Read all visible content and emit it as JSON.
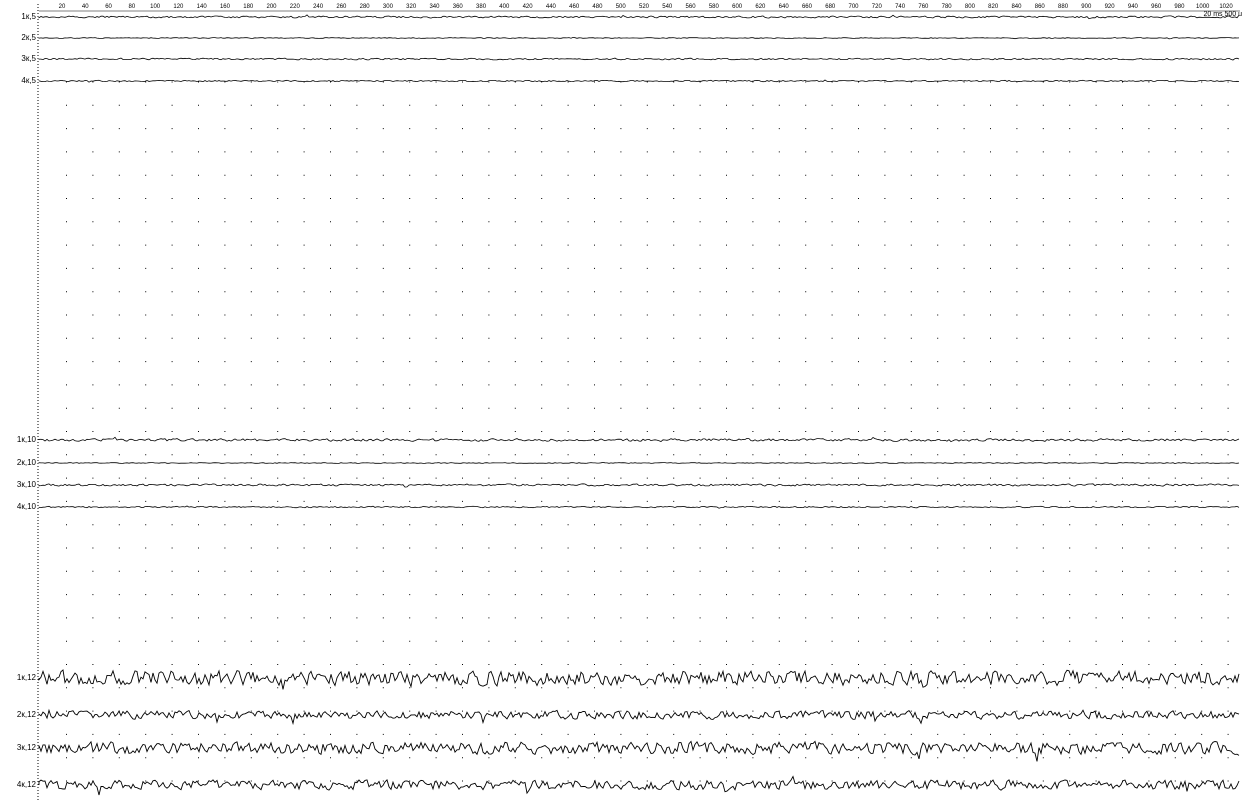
{
  "ruler": {
    "ticks": [
      "20",
      "40",
      "60",
      "80",
      "100",
      "120",
      "140",
      "160",
      "180",
      "200",
      "220",
      "240",
      "260",
      "280",
      "300",
      "320",
      "340",
      "360",
      "380",
      "400",
      "420",
      "440",
      "460",
      "480",
      "500",
      "520",
      "540",
      "560",
      "580",
      "600",
      "620",
      "640",
      "660",
      "680",
      "700",
      "720",
      "740",
      "760",
      "780",
      "800",
      "820",
      "840",
      "860",
      "880",
      "900",
      "920",
      "940",
      "960",
      "980",
      "1000",
      "1020"
    ],
    "scale_label": "20 ms 500 u"
  },
  "channels": [
    {
      "label": "1к,5",
      "amp": 1.2,
      "seed": 11
    },
    {
      "label": "2к,5",
      "amp": 0.5,
      "seed": 12
    },
    {
      "label": "3к,5",
      "amp": 1.0,
      "seed": 13
    },
    {
      "label": "4к,5",
      "amp": 0.8,
      "seed": 14
    },
    {
      "label": "1к,10",
      "amp": 1.6,
      "seed": 21
    },
    {
      "label": "2к,10",
      "amp": 0.5,
      "seed": 22
    },
    {
      "label": "3к,10",
      "amp": 1.3,
      "seed": 23
    },
    {
      "label": "4к,10",
      "amp": 0.8,
      "seed": 24
    },
    {
      "label": "1к,12",
      "amp": 9.0,
      "seed": 31
    },
    {
      "label": "2к,12",
      "amp": 5.0,
      "seed": 32
    },
    {
      "label": "3к,12",
      "amp": 7.5,
      "seed": 33
    },
    {
      "label": "4к,12",
      "amp": 6.0,
      "seed": 34
    }
  ]
}
